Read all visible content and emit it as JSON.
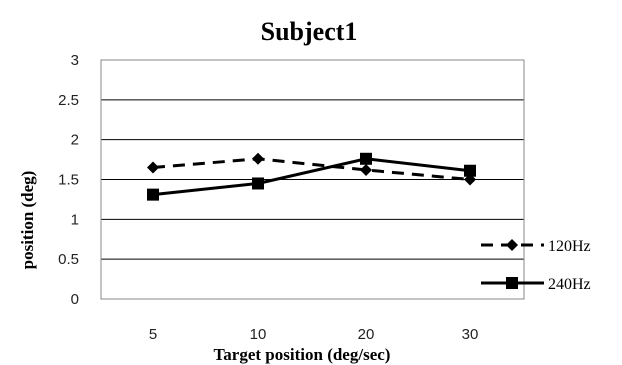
{
  "chart_data": {
    "type": "line",
    "title": "Subject1",
    "xlabel": "Target position (deg/sec)",
    "ylabel": "position (deg)",
    "categories": [
      "5",
      "10",
      "20",
      "30"
    ],
    "ylim": [
      0,
      3
    ],
    "yticks": [
      "0",
      "0.5",
      "1",
      "1.5",
      "2",
      "2.5",
      "3"
    ],
    "grid": true,
    "legend_position": "right",
    "series": [
      {
        "name": "120Hz",
        "values": [
          1.65,
          1.76,
          1.62,
          1.5
        ],
        "line_style": "dashed",
        "marker": "diamond",
        "color": "#000000"
      },
      {
        "name": "240Hz",
        "values": [
          1.31,
          1.45,
          1.76,
          1.61
        ],
        "line_style": "solid",
        "marker": "square",
        "color": "#000000"
      }
    ]
  }
}
